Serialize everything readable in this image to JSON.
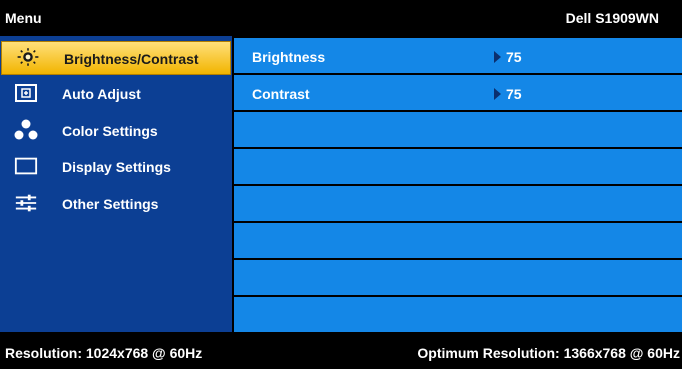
{
  "header": {
    "title": "Menu",
    "model": "Dell S1909WN"
  },
  "sidebar": {
    "items": [
      {
        "label": "Brightness/Contrast",
        "icon": "brightness-icon",
        "active": true
      },
      {
        "label": "Auto Adjust",
        "icon": "auto-adjust-icon",
        "active": false
      },
      {
        "label": "Color Settings",
        "icon": "color-settings-icon",
        "active": false
      },
      {
        "label": "Display Settings",
        "icon": "display-settings-icon",
        "active": false
      },
      {
        "label": "Other Settings",
        "icon": "other-settings-icon",
        "active": false
      }
    ]
  },
  "content": {
    "rows": [
      {
        "label": "Brightness",
        "value": "75"
      },
      {
        "label": "Contrast",
        "value": "75"
      },
      {
        "label": "",
        "value": ""
      },
      {
        "label": "",
        "value": ""
      },
      {
        "label": "",
        "value": ""
      },
      {
        "label": "",
        "value": ""
      },
      {
        "label": "",
        "value": ""
      },
      {
        "label": "",
        "value": ""
      }
    ]
  },
  "footer": {
    "resolution": "Resolution: 1024x768 @ 60Hz",
    "optimum": "Optimum Resolution: 1366x768 @ 60Hz"
  },
  "colors": {
    "sidebar_bg": "#0c3f94",
    "row_bg": "#1487e7",
    "active_bg": "#f2b400",
    "bar_bg": "#000000"
  }
}
